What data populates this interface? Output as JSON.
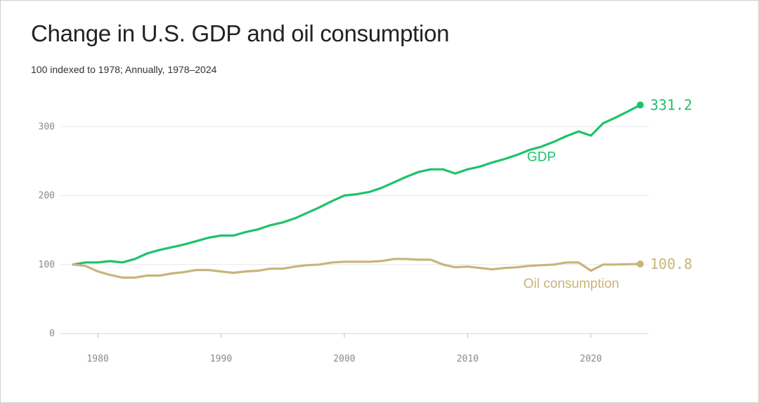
{
  "chart_data": {
    "type": "line",
    "title": "Change in U.S. GDP and oil consumption",
    "subtitle": "100 indexed to 1978; Annually, 1978–2024",
    "xlabel": "",
    "ylabel": "",
    "xlim": [
      1978,
      2024
    ],
    "ylim": [
      0,
      340
    ],
    "y_ticks": [
      0,
      100,
      200,
      300
    ],
    "x_ticks": [
      1980,
      1990,
      2000,
      2010,
      2020
    ],
    "grid": true,
    "x": [
      1978,
      1979,
      1980,
      1981,
      1982,
      1983,
      1984,
      1985,
      1986,
      1987,
      1988,
      1989,
      1990,
      1991,
      1992,
      1993,
      1994,
      1995,
      1996,
      1997,
      1998,
      1999,
      2000,
      2001,
      2002,
      2003,
      2004,
      2005,
      2006,
      2007,
      2008,
      2009,
      2010,
      2011,
      2012,
      2013,
      2014,
      2015,
      2016,
      2017,
      2018,
      2019,
      2020,
      2021,
      2022,
      2023,
      2024
    ],
    "series": [
      {
        "name": "GDP",
        "color": "#1fc26b",
        "end_label": "331.2",
        "values": [
          100,
          103,
          103,
          105,
          103,
          108,
          116,
          121,
          125,
          129,
          134,
          139,
          142,
          142,
          147,
          151,
          157,
          161,
          167,
          175,
          183,
          192,
          200,
          202,
          205,
          211,
          219,
          227,
          234,
          238,
          238,
          232,
          238,
          242,
          248,
          253,
          259,
          266,
          271,
          278,
          286,
          293,
          287,
          305,
          313,
          322,
          331.2
        ]
      },
      {
        "name": "Oil consumption",
        "color": "#c9b47a",
        "end_label": "100.8",
        "values": [
          100,
          98,
          90,
          85,
          81,
          81,
          84,
          84,
          87,
          89,
          92,
          92,
          90,
          88,
          90,
          91,
          94,
          94,
          97,
          99,
          100,
          103,
          104,
          104,
          104,
          105,
          108,
          108,
          107,
          107,
          100,
          96,
          97,
          95,
          93,
          95,
          96,
          98,
          99,
          100,
          103,
          103,
          91,
          100,
          100,
          100.5,
          100.8
        ]
      }
    ]
  }
}
